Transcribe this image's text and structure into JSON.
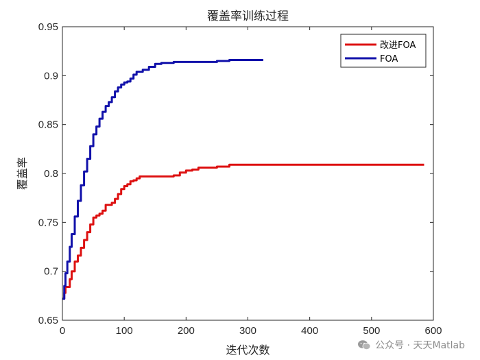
{
  "chart_data": {
    "type": "line",
    "title": "覆盖率训练过程",
    "xlabel": "迭代次数",
    "ylabel": "覆盖率",
    "xlim": [
      0,
      600
    ],
    "ylim": [
      0.65,
      0.95
    ],
    "xticks": [
      0,
      100,
      200,
      300,
      400,
      500,
      600
    ],
    "yticks": [
      0.65,
      0.7,
      0.75,
      0.8,
      0.85,
      0.9,
      0.95
    ],
    "xtick_labels": [
      "0",
      "100",
      "200",
      "300",
      "400",
      "500",
      "600"
    ],
    "ytick_labels": [
      "0.65",
      "0.7",
      "0.75",
      "0.8",
      "0.85",
      "0.9",
      "0.95"
    ],
    "grid": false,
    "legend": "top-right",
    "series": [
      {
        "name": "改进FOA",
        "color": "#dd1111",
        "x": [
          0,
          3,
          5,
          8,
          12,
          15,
          20,
          25,
          30,
          35,
          40,
          45,
          50,
          55,
          60,
          65,
          70,
          75,
          80,
          85,
          90,
          95,
          100,
          105,
          110,
          115,
          120,
          125,
          130,
          150,
          180,
          190,
          200,
          210,
          220,
          250,
          270,
          300,
          350,
          400,
          450,
          500,
          550,
          585
        ],
        "y": [
          0.672,
          0.678,
          0.684,
          0.684,
          0.692,
          0.7,
          0.71,
          0.716,
          0.724,
          0.732,
          0.74,
          0.748,
          0.755,
          0.757,
          0.759,
          0.762,
          0.768,
          0.768,
          0.77,
          0.774,
          0.779,
          0.784,
          0.787,
          0.789,
          0.792,
          0.793,
          0.795,
          0.797,
          0.797,
          0.797,
          0.798,
          0.801,
          0.803,
          0.804,
          0.806,
          0.807,
          0.809,
          0.809,
          0.809,
          0.809,
          0.809,
          0.809,
          0.809,
          0.809
        ]
      },
      {
        "name": "FOA",
        "color": "#1111aa",
        "x": [
          0,
          3,
          5,
          8,
          12,
          15,
          20,
          25,
          30,
          35,
          40,
          45,
          50,
          55,
          60,
          65,
          70,
          75,
          80,
          85,
          90,
          95,
          100,
          105,
          110,
          115,
          120,
          130,
          140,
          150,
          160,
          180,
          200,
          250,
          270,
          300,
          325
        ],
        "y": [
          0.672,
          0.685,
          0.698,
          0.71,
          0.725,
          0.738,
          0.756,
          0.772,
          0.788,
          0.802,
          0.815,
          0.828,
          0.84,
          0.848,
          0.856,
          0.863,
          0.869,
          0.873,
          0.878,
          0.884,
          0.888,
          0.891,
          0.893,
          0.894,
          0.897,
          0.901,
          0.904,
          0.906,
          0.909,
          0.912,
          0.913,
          0.914,
          0.914,
          0.915,
          0.916,
          0.916,
          0.916
        ]
      }
    ]
  },
  "watermark": {
    "text": "公众号 · 天天Matlab",
    "icon": "wechat-icon"
  }
}
